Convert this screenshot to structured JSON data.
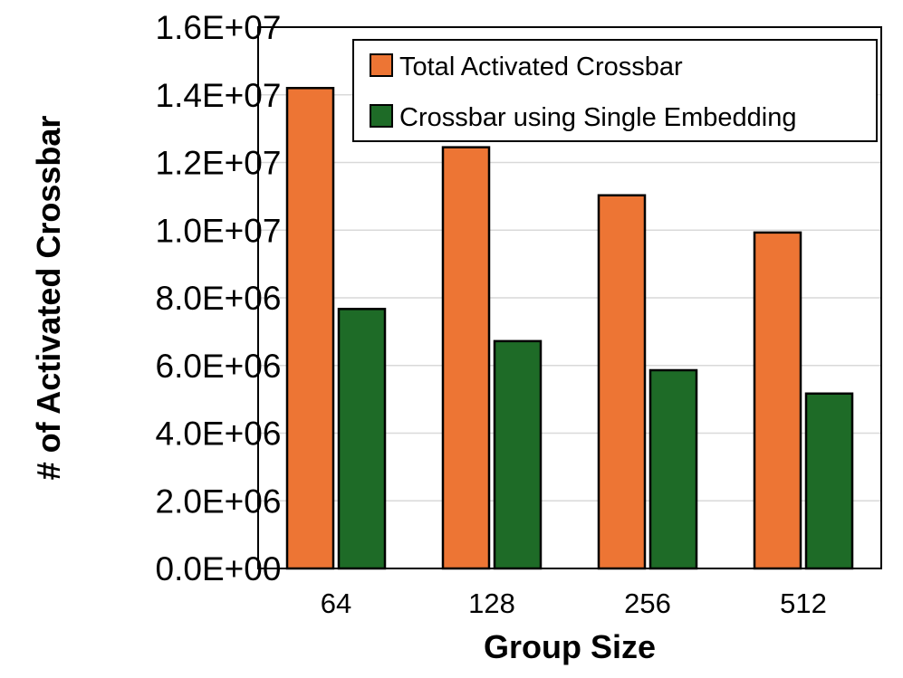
{
  "chart_data": {
    "type": "bar",
    "title": "",
    "xlabel": "Group Size",
    "ylabel": "# of Activated Crossbar",
    "categories": [
      "64",
      "128",
      "256",
      "512"
    ],
    "series": [
      {
        "name": "Total Activated Crossbar",
        "color": "#ed7534",
        "values": [
          14200000,
          12450000,
          11030000,
          9930000
        ]
      },
      {
        "name": "Crossbar using Single Embedding",
        "color": "#1e6b27",
        "values": [
          7670000,
          6720000,
          5860000,
          5170000
        ]
      }
    ],
    "ylim": [
      0,
      16000000
    ],
    "yticks": [
      "0.0E+00",
      "2.0E+06",
      "4.0E+06",
      "6.0E+06",
      "8.0E+06",
      "1.0E+07",
      "1.2E+07",
      "1.4E+07",
      "1.6E+07"
    ],
    "ytick_values": [
      0,
      2000000,
      4000000,
      6000000,
      8000000,
      10000000,
      12000000,
      14000000,
      16000000
    ],
    "grid": true,
    "legend_position": "top-right"
  }
}
